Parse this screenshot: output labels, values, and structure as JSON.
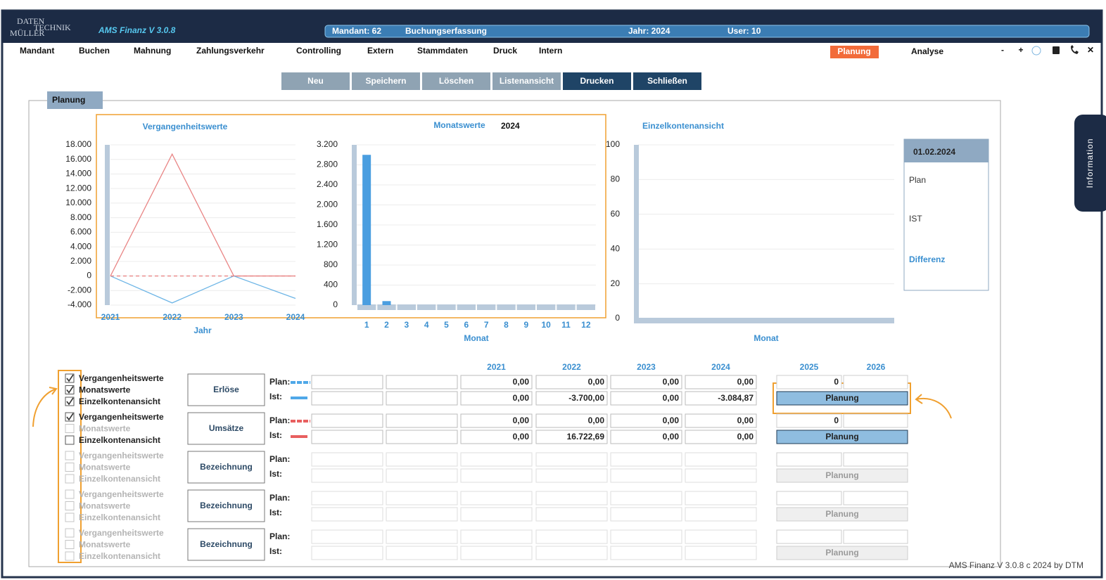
{
  "header": {
    "logo": [
      "DATEN",
      "TECHNIK",
      "MÜLLER"
    ],
    "app_title": "AMS Finanz V 3.0.8",
    "status": [
      "Mandant: 62",
      "Buchungserfassung",
      "Jahr: 2024",
      "User: 10"
    ]
  },
  "menu": {
    "items": [
      "Mandant",
      "Buchen",
      "Mahnung",
      "Zahlungsverkehr",
      "Controlling",
      "Extern",
      "Stammdaten",
      "Druck",
      "Intern"
    ],
    "active": "Planung",
    "analysis": "Analyse",
    "icons": [
      "-",
      "+",
      "✕"
    ]
  },
  "toolbar": [
    {
      "label": "Neu",
      "style": "light"
    },
    {
      "label": "Speichern",
      "style": "light"
    },
    {
      "label": "Löschen",
      "style": "light"
    },
    {
      "label": "Listenansicht",
      "style": "light"
    },
    {
      "label": "Drucken",
      "style": "dark"
    },
    {
      "label": "Schließen",
      "style": "dark"
    }
  ],
  "panel": {
    "title": "Planung"
  },
  "side_tab": "Information",
  "chart_data": [
    {
      "type": "line",
      "title": "Vergangenheitswerte",
      "x_label": "Jahr",
      "x": [
        2021,
        2022,
        2023,
        2024
      ],
      "xlim": [
        2021,
        2024
      ],
      "ylim": [
        -4000,
        18000
      ],
      "grid": true,
      "yticks": [
        {
          "value": -4000,
          "label": "-4.000"
        },
        {
          "value": -2000,
          "label": "-2.000"
        },
        0,
        {
          "value": 2000,
          "label": "2.000"
        },
        {
          "value": 4000,
          "label": "4.000"
        },
        {
          "value": 6000,
          "label": "6.000"
        },
        {
          "value": 8000,
          "label": "8.000"
        },
        {
          "value": 10000,
          "label": "10.000"
        },
        {
          "value": 12000,
          "label": "12.000"
        },
        {
          "value": 14000,
          "label": "14.000"
        },
        {
          "value": 16000,
          "label": "16.000"
        },
        {
          "value": 18000,
          "label": "18.000"
        }
      ],
      "series": [
        {
          "color": "#e98585",
          "dashed": false,
          "values": [
            0,
            16722.69,
            0,
            0
          ]
        },
        {
          "color": "#6db5e6",
          "dashed": false,
          "values": [
            0,
            -3700,
            0,
            -3084.87
          ]
        },
        {
          "color": "#e98585",
          "dashed": true,
          "values": [
            0,
            0,
            0,
            0
          ]
        }
      ]
    },
    {
      "type": "bar",
      "title": "Monatswerte",
      "subtitle": "2024",
      "x_label": "Monat",
      "categories": [
        "1",
        "2",
        "3",
        "4",
        "5",
        "6",
        "7",
        "8",
        "9",
        "10",
        "11",
        "12"
      ],
      "values": [
        3000,
        80,
        0,
        0,
        0,
        0,
        0,
        0,
        0,
        0,
        0,
        0
      ],
      "color": "#4a9ee0",
      "ylim": [
        0,
        3200
      ],
      "grid": true,
      "yticks": [
        0,
        400,
        800,
        {
          "value": 1200,
          "label": "1.200"
        },
        {
          "value": 1600,
          "label": "1.600"
        },
        {
          "value": 2000,
          "label": "2.000"
        },
        {
          "value": 2400,
          "label": "2.400"
        },
        {
          "value": 2800,
          "label": "2.800"
        },
        {
          "value": 3200,
          "label": "3.200"
        }
      ]
    },
    {
      "type": "empty",
      "title": "Einzelkontenansicht",
      "x_label": "Monat",
      "ylim": [
        0,
        100
      ],
      "grid": true,
      "yticks": [
        0,
        20,
        40,
        60,
        80,
        100
      ]
    }
  ],
  "info_box": {
    "date": "01.02.2024",
    "rows": [
      "Plan",
      "IST",
      "Differenz"
    ]
  },
  "table": {
    "years": [
      "2021",
      "2022",
      "2023",
      "2024"
    ],
    "future_years": [
      "2025",
      "2026"
    ],
    "groups": [
      {
        "checkboxes": [
          {
            "label": "Vergangenheitswerte",
            "checked": true,
            "enabled": true
          },
          {
            "label": "Monatswerte",
            "checked": true,
            "enabled": true
          },
          {
            "label": "Einzelkontenansicht",
            "checked": true,
            "enabled": true
          }
        ],
        "button": "Erlöse",
        "plan_label": "Plan:",
        "ist_label": "Ist:",
        "color": "#4fa8e8",
        "active": true,
        "plan": [
          "0,00",
          "0,00",
          "0,00",
          "0,00"
        ],
        "ist": [
          "0,00",
          "-3.700,00",
          "0,00",
          "-3.084,87"
        ],
        "plan_next": "0",
        "action": "Planung"
      },
      {
        "checkboxes": [
          {
            "label": "Vergangenheitswerte",
            "checked": true,
            "enabled": true
          },
          {
            "label": "Monatswerte",
            "checked": false,
            "enabled": false
          },
          {
            "label": "Einzelkontenansicht",
            "checked": false,
            "enabled": true
          }
        ],
        "button": "Umsätze",
        "plan_label": "Plan:",
        "ist_label": "Ist:",
        "color": "#e85f5f",
        "active": true,
        "plan": [
          "0,00",
          "0,00",
          "0,00",
          "0,00"
        ],
        "ist": [
          "0,00",
          "16.722,69",
          "0,00",
          "0,00"
        ],
        "plan_next": "0",
        "action": "Planung"
      },
      {
        "checkboxes": [
          {
            "label": "Vergangenheitswerte",
            "checked": false,
            "enabled": false
          },
          {
            "label": "Monatswerte",
            "checked": false,
            "enabled": false
          },
          {
            "label": "Einzelkontenansicht",
            "checked": false,
            "enabled": false
          }
        ],
        "button": "Bezeichnung",
        "plan_label": "Plan:",
        "ist_label": "Ist:",
        "active": false,
        "action": "Planung"
      },
      {
        "checkboxes": [
          {
            "label": "Vergangenheitswerte",
            "checked": false,
            "enabled": false
          },
          {
            "label": "Monatswerte",
            "checked": false,
            "enabled": false
          },
          {
            "label": "Einzelkontenansicht",
            "checked": false,
            "enabled": false
          }
        ],
        "button": "Bezeichnung",
        "plan_label": "Plan:",
        "ist_label": "Ist:",
        "active": false,
        "action": "Planung"
      },
      {
        "checkboxes": [
          {
            "label": "Vergangenheitswerte",
            "checked": false,
            "enabled": false
          },
          {
            "label": "Monatswerte",
            "checked": false,
            "enabled": false
          },
          {
            "label": "Einzelkontenansicht",
            "checked": false,
            "enabled": false
          }
        ],
        "button": "Bezeichnung",
        "plan_label": "Plan:",
        "ist_label": "Ist:",
        "active": false,
        "action": "Planung"
      }
    ]
  },
  "footer": "AMS Finanz V 3.0.8 c  2024 by DTM"
}
